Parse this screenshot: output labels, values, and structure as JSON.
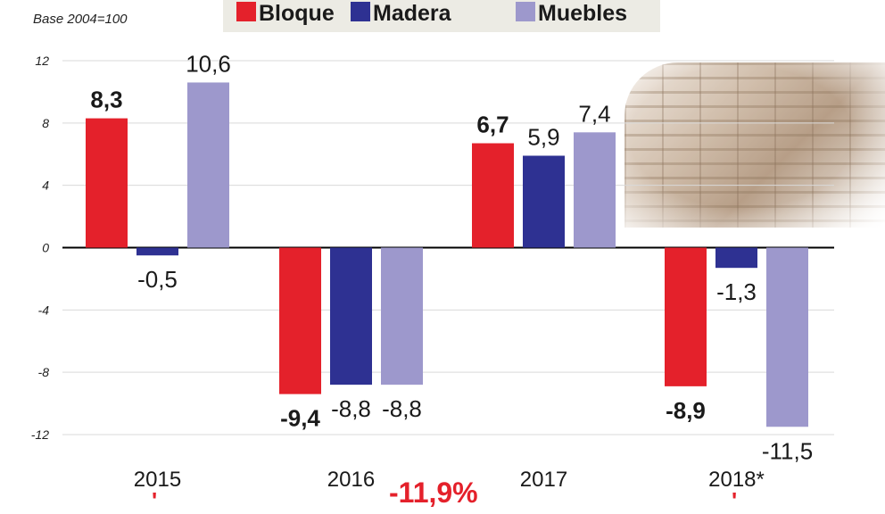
{
  "chart_data": {
    "type": "bar",
    "title": "",
    "base_note": "Base 2004=100",
    "xlabel": "",
    "ylabel": "",
    "categories": [
      "2015",
      "2016",
      "2017",
      "2018*"
    ],
    "series": [
      {
        "name": "Bloque",
        "color": "#e4212b",
        "values": [
          8.3,
          -9.4,
          6.7,
          -8.9
        ],
        "labels": [
          "8,3",
          "-9,4",
          "6,7",
          "-8,9"
        ],
        "bold_labels": true
      },
      {
        "name": "Madera",
        "color": "#2e3192",
        "values": [
          -0.5,
          -8.8,
          5.9,
          -1.3
        ],
        "labels": [
          "-0,5",
          "-8,8",
          "5,9",
          "-1,3"
        ],
        "bold_labels": false
      },
      {
        "name": "Muebles",
        "color": "#9d98cc",
        "values": [
          10.6,
          -8.8,
          7.4,
          -11.5
        ],
        "labels": [
          "10,6",
          "-8,8",
          "7,4",
          "-11,5"
        ],
        "bold_labels": false
      }
    ],
    "ylim": [
      -12,
      12
    ],
    "yticks": [
      12,
      8,
      4,
      0,
      -4,
      -8,
      -12
    ],
    "grid": true,
    "legend": "top"
  },
  "bottom_note": "-11,9%",
  "bottom_dot": "'"
}
